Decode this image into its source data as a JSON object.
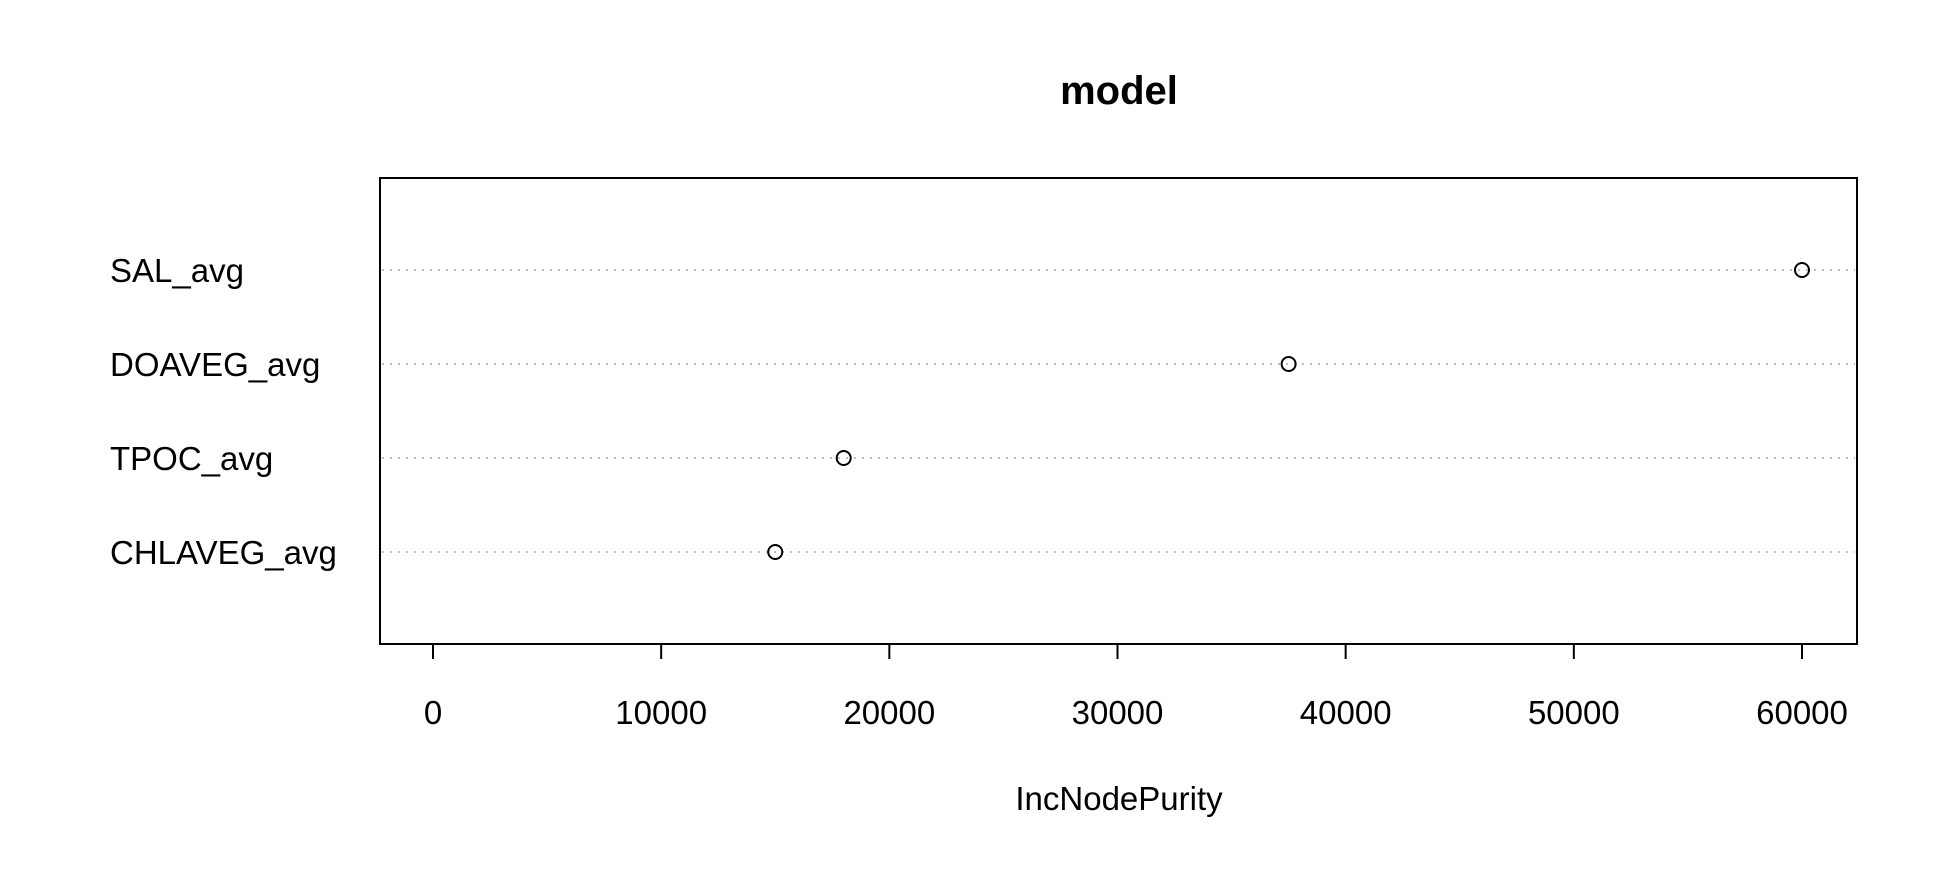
{
  "chart_data": {
    "type": "scatter",
    "title": "model",
    "xlabel": "IncNodePurity",
    "ylabel": "",
    "categories": [
      "SAL_avg",
      "DOAVEG_avg",
      "TPOC_avg",
      "CHLAVEG_avg"
    ],
    "values": [
      60000,
      37500,
      18000,
      15000
    ],
    "xlim": [
      -2400,
      62400
    ],
    "xticks": [
      0,
      10000,
      20000,
      30000,
      40000,
      50000,
      60000
    ],
    "xtick_labels": [
      "0",
      "10000",
      "20000",
      "30000",
      "40000",
      "50000",
      "60000"
    ],
    "grid": "dotted horizontal guide lines per category",
    "legend": "none",
    "colors": {
      "axis": "#000000",
      "guide": "#bebebe",
      "point": "#000000"
    }
  }
}
